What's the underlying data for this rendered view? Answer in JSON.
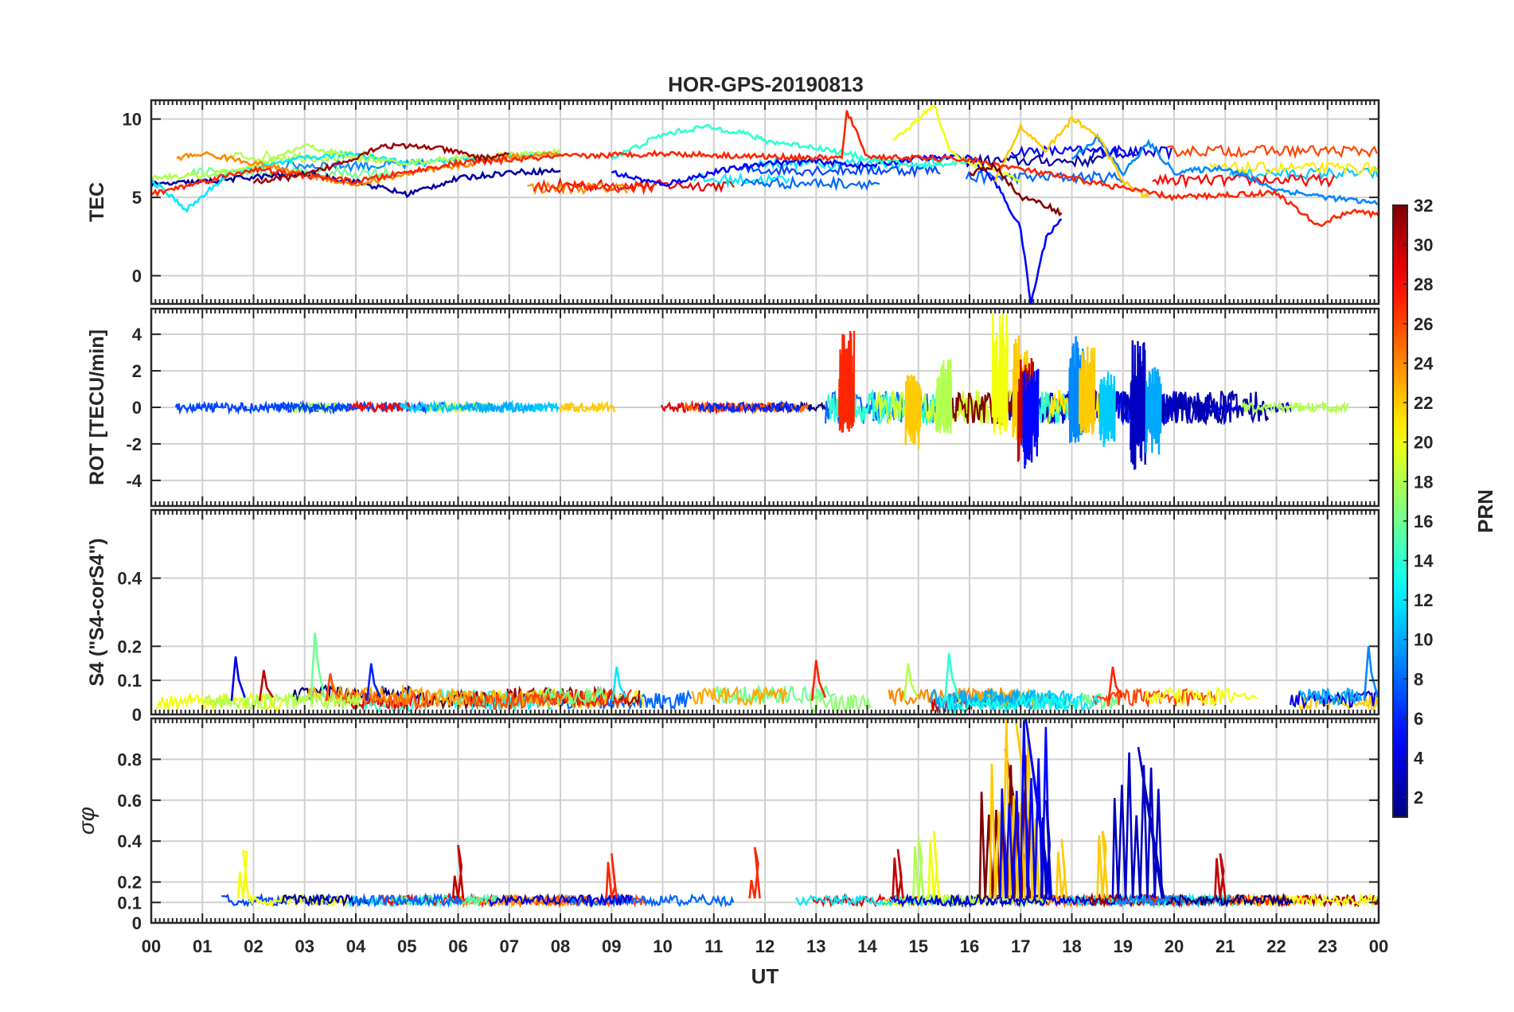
{
  "chart_data": [
    {
      "type": "line",
      "title": "HOR-GPS-20190813",
      "ylabel": "TEC",
      "ylim": [
        -1.8,
        11.2
      ],
      "yticks": [
        0,
        5,
        10
      ],
      "grid": true,
      "description_series": "one TEC trace per GPS PRN 1-32, values ~4-10 TECU; large disturbances 15-20 UT with dip to -1.8 at ~17.2 UT",
      "series": [
        {
          "prn": 2,
          "x": [
            0.0,
            1.0,
            2.0,
            3.0,
            4.0,
            5.0,
            6.0,
            7.0,
            8.0
          ],
          "y": [
            5.8,
            6.0,
            6.3,
            6.5,
            6.0,
            5.2,
            6.2,
            6.6,
            6.7
          ]
        },
        {
          "prn": 5,
          "x": [
            9.0,
            10.0,
            11.0,
            12.0,
            13.0,
            14.0,
            15.0,
            16.0,
            16.5,
            17.0,
            17.2,
            17.5,
            17.8
          ],
          "y": [
            6.6,
            5.8,
            6.6,
            7.2,
            7.3,
            7.0,
            7.5,
            7.6,
            6.0,
            3.0,
            -1.8,
            2.5,
            3.6
          ]
        },
        {
          "prn": 9,
          "x": [
            18.0,
            18.5,
            19.0,
            19.5,
            20.0,
            21.0,
            22.0,
            23.0,
            24.0
          ],
          "y": [
            7.5,
            8.8,
            6.5,
            8.5,
            6.6,
            6.9,
            5.5,
            5.0,
            4.6
          ]
        },
        {
          "prn": 12,
          "x": [
            0.0,
            0.7,
            1.5,
            3.0,
            4.0,
            5.0,
            6.0,
            7.0,
            8.0
          ],
          "y": [
            6.1,
            4.2,
            6.5,
            7.5,
            7.8,
            7.2,
            7.4,
            7.6,
            7.8
          ]
        },
        {
          "prn": 14,
          "x": [
            9.0,
            10.0,
            10.8,
            11.5,
            12.0,
            13.0,
            14.0,
            15.0,
            16.0
          ],
          "y": [
            7.5,
            9.0,
            9.5,
            9.2,
            8.6,
            8.2,
            7.5,
            7.0,
            7.3
          ]
        },
        {
          "prn": 18,
          "x": [
            0.0,
            1.0,
            2.0,
            3.0,
            4.0,
            5.0,
            6.0,
            7.0,
            8.0
          ],
          "y": [
            6.3,
            6.4,
            6.9,
            8.3,
            7.5,
            7.2,
            7.5,
            7.7,
            7.9
          ]
        },
        {
          "prn": 20,
          "x": [
            14.5,
            15.0,
            15.3,
            15.6,
            16.0,
            16.5,
            17.0
          ],
          "y": [
            8.5,
            10.0,
            11.0,
            8.0,
            7.2,
            6.8,
            6.0
          ]
        },
        {
          "prn": 22,
          "x": [
            16.5,
            17.0,
            17.5,
            18.0,
            18.5,
            19.0,
            19.5
          ],
          "y": [
            6.0,
            9.5,
            8.0,
            10.0,
            9.0,
            6.0,
            5.0
          ]
        },
        {
          "prn": 24,
          "x": [
            0.5,
            1.0,
            2.0,
            3.0,
            4.0,
            5.0,
            6.0,
            7.0,
            8.0
          ],
          "y": [
            7.5,
            7.8,
            7.2,
            6.5,
            5.8,
            6.5,
            7.0,
            7.6,
            7.8
          ]
        },
        {
          "prn": 27,
          "x": [
            0.0,
            2.0,
            4.0,
            6.0,
            8.0,
            10.0,
            12.0,
            13.5,
            13.6,
            14.0,
            16.0,
            18.0,
            20.0,
            22.0,
            22.8,
            23.5,
            24.0
          ],
          "y": [
            5.2,
            6.8,
            6.0,
            7.2,
            7.6,
            7.8,
            7.6,
            7.5,
            10.5,
            7.6,
            7.4,
            6.2,
            5.0,
            5.3,
            3.2,
            4.2,
            3.8
          ]
        },
        {
          "prn": 31,
          "x": [
            2.0,
            3.0,
            3.8,
            4.5,
            5.5,
            6.5,
            7.0
          ],
          "y": [
            6.0,
            6.4,
            7.3,
            8.3,
            8.2,
            7.5,
            7.8
          ]
        },
        {
          "prn": 32,
          "x": [
            16.0,
            16.5,
            17.0,
            17.5,
            17.8
          ],
          "y": [
            6.5,
            7.0,
            5.0,
            4.5,
            4.0
          ]
        }
      ]
    },
    {
      "type": "line",
      "ylabel": "ROT [TECU/min]",
      "ylim": [
        -5.4,
        5.4
      ],
      "yticks": [
        -4,
        -2,
        0,
        2,
        4
      ],
      "grid": true,
      "description_series": "rate of TEC per PRN, mostly within ±0.5; bursts of ±2-5 between 13.5 and 19.5 UT",
      "spikes": [
        {
          "prn": 27,
          "x": 13.6,
          "ymin": -1.4,
          "ymax": 4.5
        },
        {
          "prn": 22,
          "x": 14.9,
          "ymin": -2.3,
          "ymax": 1.8
        },
        {
          "prn": 18,
          "x": 15.5,
          "ymin": -1.5,
          "ymax": 2.9
        },
        {
          "prn": 20,
          "x": 16.6,
          "ymin": -1.6,
          "ymax": 5.2
        },
        {
          "prn": 22,
          "x": 17.0,
          "ymin": -1.8,
          "ymax": 4.3
        },
        {
          "prn": 30,
          "x": 17.1,
          "ymin": -3.0,
          "ymax": 2.8
        },
        {
          "prn": 5,
          "x": 17.2,
          "ymin": -3.5,
          "ymax": 2.2
        },
        {
          "prn": 9,
          "x": 18.1,
          "ymin": -2.0,
          "ymax": 3.9
        },
        {
          "prn": 22,
          "x": 18.3,
          "ymin": -1.5,
          "ymax": 3.5
        },
        {
          "prn": 11,
          "x": 18.7,
          "ymin": -2.2,
          "ymax": 2.0
        },
        {
          "prn": 3,
          "x": 19.3,
          "ymin": -3.6,
          "ymax": 3.9
        },
        {
          "prn": 10,
          "x": 19.6,
          "ymin": -2.6,
          "ymax": 2.2
        }
      ]
    },
    {
      "type": "line",
      "ylabel": "S4 (\"S4-corS4\")",
      "ylim": [
        0,
        0.6
      ],
      "yticks": [
        0,
        0.1,
        0.2,
        0.4
      ],
      "grid": true,
      "description_series": "amplitude scintillation index per PRN, background 0.02-0.08, peaks up to ~0.24",
      "peaks": [
        {
          "prn": 4,
          "x": 1.65,
          "y": 0.17
        },
        {
          "prn": 30,
          "x": 2.2,
          "y": 0.13
        },
        {
          "prn": 16,
          "x": 3.2,
          "y": 0.24
        },
        {
          "prn": 26,
          "x": 3.5,
          "y": 0.12
        },
        {
          "prn": 6,
          "x": 4.3,
          "y": 0.15
        },
        {
          "prn": 12,
          "x": 9.1,
          "y": 0.14
        },
        {
          "prn": 27,
          "x": 13.0,
          "y": 0.16
        },
        {
          "prn": 18,
          "x": 14.8,
          "y": 0.15
        },
        {
          "prn": 14,
          "x": 15.6,
          "y": 0.18
        },
        {
          "prn": 27,
          "x": 18.8,
          "y": 0.14
        },
        {
          "prn": 9,
          "x": 23.8,
          "y": 0.2
        }
      ]
    },
    {
      "type": "line",
      "ylabel": "σφ",
      "xlabel": "UT",
      "xticks": [
        "00",
        "01",
        "02",
        "03",
        "04",
        "05",
        "06",
        "07",
        "08",
        "09",
        "10",
        "11",
        "12",
        "13",
        "14",
        "15",
        "16",
        "17",
        "18",
        "19",
        "20",
        "21",
        "22",
        "23",
        "00"
      ],
      "xlim": [
        0,
        24
      ],
      "ylim": [
        0,
        1.0
      ],
      "yticks": [
        0,
        0.1,
        0.2,
        0.4,
        0.6,
        0.8
      ],
      "grid": true,
      "description_series": "phase scintillation index per PRN, background ~0.1, intense 0.4-1.0 around 16.5-17.5 UT",
      "peaks": [
        {
          "prn": 20,
          "x": 1.8,
          "y": 0.35
        },
        {
          "prn": 30,
          "x": 6.0,
          "y": 0.38
        },
        {
          "prn": 27,
          "x": 9.0,
          "y": 0.34
        },
        {
          "prn": 27,
          "x": 11.8,
          "y": 0.37
        },
        {
          "prn": 30,
          "x": 14.6,
          "y": 0.36
        },
        {
          "prn": 18,
          "x": 15.0,
          "y": 0.42
        },
        {
          "prn": 20,
          "x": 15.3,
          "y": 0.45
        },
        {
          "prn": 32,
          "x": 16.7,
          "y": 0.85
        },
        {
          "prn": 22,
          "x": 16.9,
          "y": 1.0
        },
        {
          "prn": 5,
          "x": 17.1,
          "y": 1.0
        },
        {
          "prn": 3,
          "x": 17.5,
          "y": 0.6
        },
        {
          "prn": 22,
          "x": 17.8,
          "y": 0.41
        },
        {
          "prn": 22,
          "x": 18.6,
          "y": 0.45
        },
        {
          "prn": 3,
          "x": 19.3,
          "y": 0.86
        },
        {
          "prn": 30,
          "x": 20.9,
          "y": 0.34
        }
      ]
    }
  ],
  "colorbar": {
    "label": "PRN",
    "ticks": [
      2,
      4,
      6,
      8,
      10,
      12,
      14,
      16,
      18,
      20,
      22,
      24,
      26,
      28,
      30,
      32
    ],
    "range": [
      1,
      32
    ],
    "colormap": "jet"
  }
}
